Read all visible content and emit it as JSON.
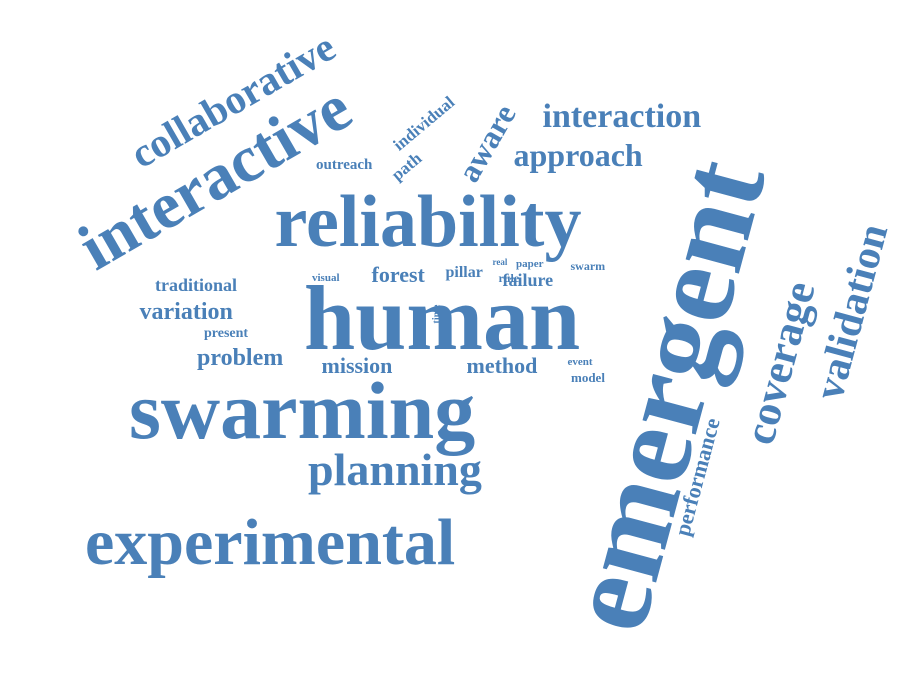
{
  "word_color": "#4a80b8",
  "background": "#ffffff",
  "words": {
    "emergent": "emergent",
    "human": "human",
    "reliability": "reliability",
    "swarming": "swarming",
    "experimental": "experimental",
    "interactive": "interactive",
    "collaborative": "collaborative",
    "validation": "validation",
    "coverage": "coverage",
    "planning": "planning",
    "interaction": "interaction",
    "approach": "approach",
    "aware": "aware",
    "performance": "performance",
    "problem": "problem",
    "mission": "mission",
    "method": "method",
    "variation": "variation",
    "traditional": "traditional",
    "forest": "forest",
    "failure": "failure",
    "pillar": "pillar",
    "individual": "individual",
    "path": "path",
    "outreach": "outreach",
    "present": "present",
    "visual": "visual",
    "swarm": "swarm",
    "rule": "rule",
    "paper": "paper",
    "real": "real",
    "time": "time",
    "event": "event",
    "model": "model"
  }
}
